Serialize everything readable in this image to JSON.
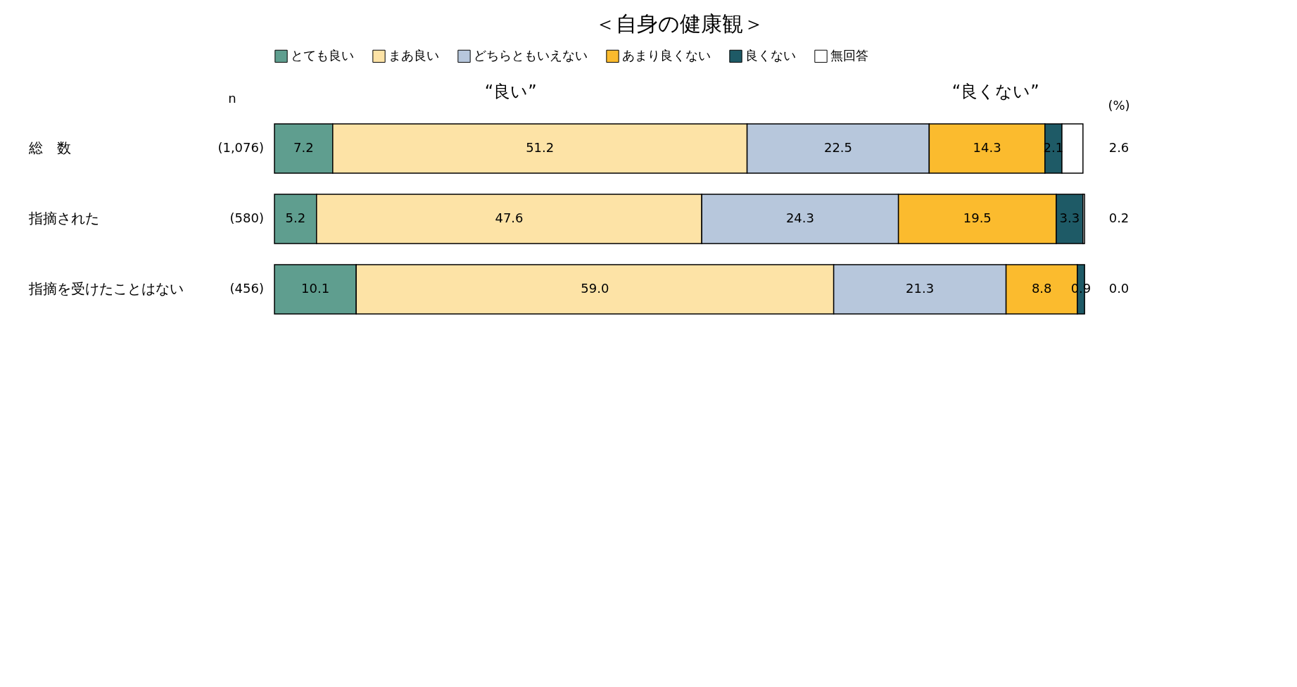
{
  "chart_data": {
    "type": "bar",
    "orientation": "horizontal",
    "stacked": true,
    "title": "＜自身の健康観＞",
    "categories": [
      "総　数",
      "指摘された",
      "指摘を受けたことはない"
    ],
    "series": [
      {
        "name": "とても良い",
        "color": "#5f9e8f",
        "values": [
          7.2,
          5.2,
          10.1
        ],
        "value_labels": [
          "7.2",
          "5.2",
          "10.1"
        ]
      },
      {
        "name": "まあ良い",
        "color": "#fde3a6",
        "values": [
          51.2,
          47.6,
          59.0
        ],
        "value_labels": [
          "51.2",
          "47.6",
          "59.0"
        ]
      },
      {
        "name": "どちらともいえない",
        "color": "#b7c7dc",
        "values": [
          22.5,
          24.3,
          21.3
        ],
        "value_labels": [
          "22.5",
          "24.3",
          "21.3"
        ]
      },
      {
        "name": "あまり良くない",
        "color": "#fbbb2e",
        "values": [
          14.3,
          19.5,
          8.8
        ],
        "value_labels": [
          "14.3",
          "19.5",
          "8.8"
        ]
      },
      {
        "name": "良くない",
        "color": "#1e5a66",
        "values": [
          2.1,
          3.3,
          0.9
        ],
        "value_labels": [
          "2.1",
          "3.3",
          "0.9"
        ]
      },
      {
        "name": "無回答",
        "color": "#ffffff",
        "values": [
          2.6,
          0.2,
          0.0
        ],
        "value_labels": [
          "2.6",
          "0.2",
          "0.0"
        ]
      }
    ],
    "xlim": [
      0,
      100
    ],
    "tick_labels": "y",
    "legend": "top",
    "annotations": [
      "“良い”",
      "“良くない”",
      "n",
      "(%)",
      "(1,076)",
      "(580)",
      "(456)"
    ]
  }
}
